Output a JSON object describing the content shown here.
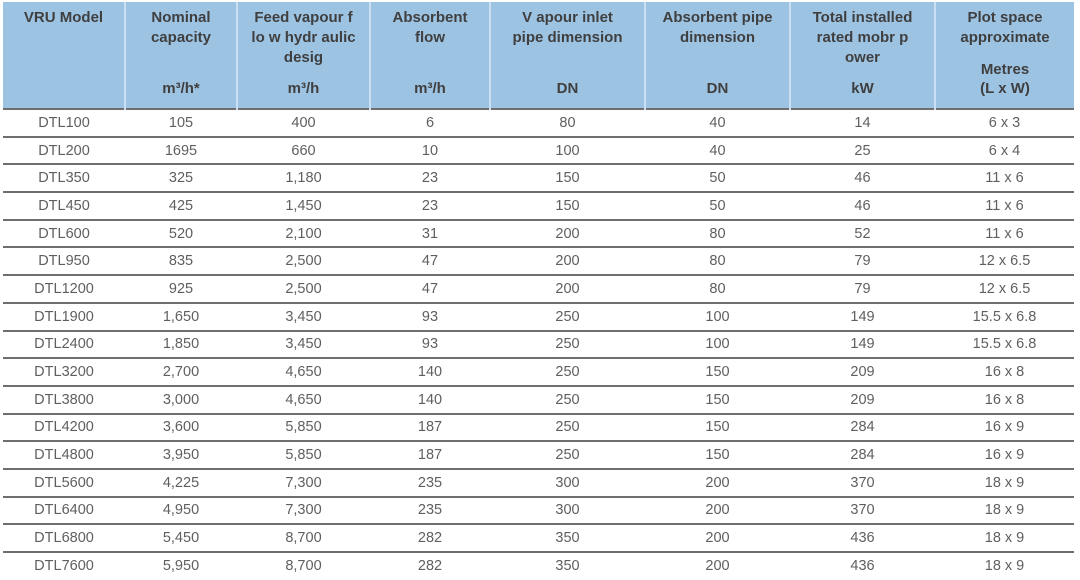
{
  "table": {
    "columns": [
      {
        "id": "model",
        "title_lines": [
          "VRU Model"
        ],
        "unit_lines": []
      },
      {
        "id": "nominal-capacity",
        "title_lines": [
          "Nominal",
          "capacity"
        ],
        "unit_lines": [
          "m³/h*"
        ]
      },
      {
        "id": "feed-vapour-flow",
        "title_lines": [
          "Feed vapour f",
          "lo w hydr aulic",
          "desig"
        ],
        "unit_lines": [
          "m³/h"
        ]
      },
      {
        "id": "absorbent-flow",
        "title_lines": [
          "Absorbent",
          "flow"
        ],
        "unit_lines": [
          "m³/h"
        ]
      },
      {
        "id": "vapour-inlet-pipe",
        "title_lines": [
          "V apour inlet",
          "pipe dimension"
        ],
        "unit_lines": [
          "DN"
        ]
      },
      {
        "id": "absorbent-pipe",
        "title_lines": [
          "Absorbent pipe",
          "dimension"
        ],
        "unit_lines": [
          "DN"
        ]
      },
      {
        "id": "motor-power",
        "title_lines": [
          "Total installed",
          "rated mobr p",
          "ower"
        ],
        "unit_lines": [
          "kW"
        ]
      },
      {
        "id": "plot-space",
        "title_lines": [
          "Plot space",
          "approximate"
        ],
        "unit_lines": [
          "Metres",
          "(L x W)"
        ]
      }
    ],
    "rows": [
      [
        "DTL100",
        "105",
        "400",
        "6",
        "80",
        "40",
        "14",
        "6 x 3"
      ],
      [
        "DTL200",
        "1695",
        "660",
        "10",
        "100",
        "40",
        "25",
        "6 x 4"
      ],
      [
        "DTL350",
        "325",
        "1,180",
        "23",
        "150",
        "50",
        "46",
        "11 x 6"
      ],
      [
        "DTL450",
        "425",
        "1,450",
        "23",
        "150",
        "50",
        "46",
        "11 x 6"
      ],
      [
        "DTL600",
        "520",
        "2,100",
        "31",
        "200",
        "80",
        "52",
        "11 x 6"
      ],
      [
        "DTL950",
        "835",
        "2,500",
        "47",
        "200",
        "80",
        "79",
        "12 x 6.5"
      ],
      [
        "DTL1200",
        "925",
        "2,500",
        "47",
        "200",
        "80",
        "79",
        "12 x 6.5"
      ],
      [
        "DTL1900",
        "1,650",
        "3,450",
        "93",
        "250",
        "100",
        "149",
        "15.5 x 6.8"
      ],
      [
        "DTL2400",
        "1,850",
        "3,450",
        "93",
        "250",
        "100",
        "149",
        "15.5 x 6.8"
      ],
      [
        "DTL3200",
        "2,700",
        "4,650",
        "140",
        "250",
        "150",
        "209",
        "16 x 8"
      ],
      [
        "DTL3800",
        "3,000",
        "4,650",
        "140",
        "250",
        "150",
        "209",
        "16 x 8"
      ],
      [
        "DTL4200",
        "3,600",
        "5,850",
        "187",
        "250",
        "150",
        "284",
        "16 x 9"
      ],
      [
        "DTL4800",
        "3,950",
        "5,850",
        "187",
        "250",
        "150",
        "284",
        "16 x 9"
      ],
      [
        "DTL5600",
        "4,225",
        "7,300",
        "235",
        "300",
        "200",
        "370",
        "18 x 9"
      ],
      [
        "DTL6400",
        "4,950",
        "7,300",
        "235",
        "300",
        "200",
        "370",
        "18 x 9"
      ],
      [
        "DTL6800",
        "5,450",
        "8,700",
        "282",
        "350",
        "200",
        "436",
        "18 x 9"
      ],
      [
        "DTL7600",
        "5,950",
        "8,700",
        "282",
        "350",
        "200",
        "436",
        "18 x 9"
      ]
    ],
    "colors": {
      "header_bg": "#9dc3e3",
      "header_text": "#3f3f3f",
      "header_divider": "#cbdff2",
      "body_text": "#5f5f5f",
      "row_line": "#6e6e6e"
    }
  }
}
